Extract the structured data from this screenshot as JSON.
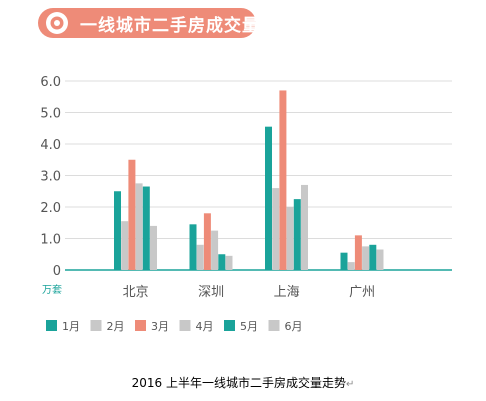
{
  "chart_data": {
    "type": "bar",
    "title": "一线城市二手房成交量",
    "ylabel": "万套",
    "xlabel": "",
    "categories": [
      "北京",
      "深圳",
      "上海",
      "广州"
    ],
    "ylim": [
      0,
      6
    ],
    "yticks": [
      "0",
      "1.0",
      "2.0",
      "3.0",
      "4.0",
      "5.0",
      "6.0"
    ],
    "grid": true,
    "legend_position": "bottom",
    "series": [
      {
        "name": "1月",
        "color": "#1aa39a",
        "values": [
          2.5,
          1.45,
          4.55,
          0.55
        ]
      },
      {
        "name": "2月",
        "color": "#c8c8c8",
        "values": [
          1.55,
          0.8,
          2.6,
          0.25
        ]
      },
      {
        "name": "3月",
        "color": "#ee8b78",
        "values": [
          3.5,
          1.8,
          5.7,
          1.1
        ]
      },
      {
        "name": "4月",
        "color": "#c8c8c8",
        "values": [
          2.75,
          1.25,
          2.0,
          0.75
        ]
      },
      {
        "name": "5月",
        "color": "#1aa39a",
        "values": [
          2.65,
          0.5,
          2.25,
          0.8
        ]
      },
      {
        "name": "6月",
        "color": "#c8c8c8",
        "values": [
          1.4,
          0.45,
          2.7,
          0.65
        ]
      }
    ]
  },
  "caption": {
    "text": "2016 上半年一线城市二手房成交量走势",
    "mark": "↵"
  },
  "colors": {
    "accent": "#ee8b78",
    "teal": "#1aa39a",
    "gray": "#c8c8c8",
    "axis_text": "#555555",
    "unit_text": "#1aa39a"
  }
}
